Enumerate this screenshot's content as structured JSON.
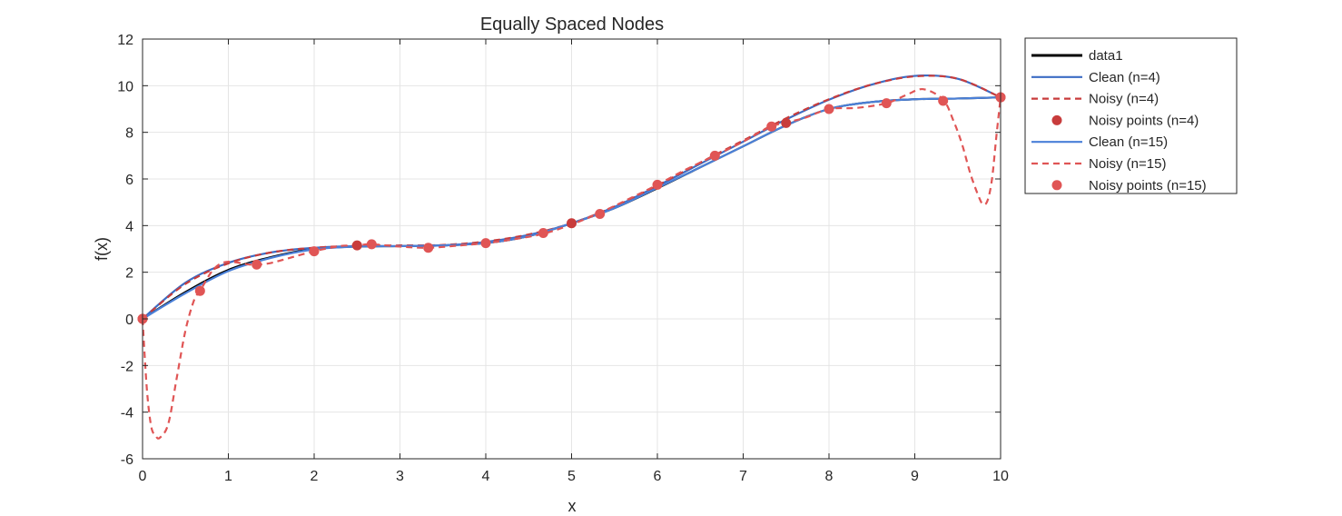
{
  "chart_data": {
    "type": "line",
    "title": "Equally Spaced Nodes",
    "xlabel": "x",
    "ylabel": "f(x)",
    "xlim": [
      0,
      10
    ],
    "ylim": [
      -6,
      12
    ],
    "xticks": [
      0,
      1,
      2,
      3,
      4,
      5,
      6,
      7,
      8,
      9,
      10
    ],
    "yticks": [
      -6,
      -4,
      -2,
      0,
      2,
      4,
      6,
      8,
      10,
      12
    ],
    "xtick_labels": [
      "0",
      "1",
      "2",
      "3",
      "4",
      "5",
      "6",
      "7",
      "8",
      "9",
      "10"
    ],
    "ytick_labels": [
      "-6",
      "-4",
      "-2",
      "0",
      "2",
      "4",
      "6",
      "8",
      "10",
      "12"
    ],
    "grid": true,
    "legend_position": "outside-top-right",
    "series": [
      {
        "name": "data1",
        "style": "line",
        "color": "#000000",
        "x": [
          0,
          0.5,
          1,
          1.5,
          2,
          2.5,
          3,
          3.5,
          4,
          4.5,
          5,
          5.5,
          6,
          6.5,
          7,
          7.5,
          8,
          8.5,
          9,
          9.5,
          10
        ],
        "y": [
          0,
          1.15,
          2.1,
          2.65,
          3.0,
          3.1,
          3.12,
          3.15,
          3.25,
          3.55,
          4.1,
          4.75,
          5.6,
          6.5,
          7.4,
          8.3,
          9.0,
          9.3,
          9.42,
          9.45,
          9.5
        ]
      },
      {
        "name": "Clean (n=4)",
        "style": "line",
        "color": "#3c6cc4",
        "x": [
          0,
          0.5,
          1,
          1.5,
          2,
          2.5,
          3,
          3.5,
          4,
          4.5,
          5,
          5.5,
          6,
          6.5,
          7,
          7.5,
          8,
          8.5,
          9,
          9.5,
          10
        ],
        "y": [
          0,
          1.55,
          2.4,
          2.85,
          3.05,
          3.12,
          3.12,
          3.15,
          3.3,
          3.6,
          4.1,
          4.8,
          5.7,
          6.65,
          7.6,
          8.55,
          9.4,
          10.05,
          10.42,
          10.3,
          9.5
        ]
      },
      {
        "name": "Noisy (n=4)",
        "style": "dashed",
        "color": "#c83c3c",
        "x": [
          0,
          0.5,
          1,
          1.5,
          2,
          2.5,
          3,
          3.5,
          4,
          4.5,
          5,
          5.5,
          6,
          6.5,
          7,
          7.5,
          8,
          8.5,
          9,
          9.5,
          10
        ],
        "y": [
          0,
          1.5,
          2.38,
          2.85,
          3.05,
          3.13,
          3.15,
          3.17,
          3.32,
          3.62,
          4.1,
          4.82,
          5.72,
          6.7,
          7.65,
          8.6,
          9.42,
          10.05,
          10.4,
          10.3,
          9.5
        ]
      },
      {
        "name": "Noisy points (n=4)",
        "style": "markers",
        "color": "#c83c3c",
        "x": [
          0,
          2.5,
          5,
          7.5,
          10
        ],
        "y": [
          0,
          3.15,
          4.1,
          8.4,
          9.5
        ]
      },
      {
        "name": "Clean (n=15)",
        "style": "line",
        "color": "#4a80d8",
        "x": [
          0,
          0.5,
          1,
          1.5,
          2,
          2.5,
          3,
          3.5,
          4,
          4.5,
          5,
          5.5,
          6,
          6.5,
          7,
          7.5,
          8,
          8.5,
          9,
          9.5,
          10
        ],
        "y": [
          0,
          1.1,
          2.05,
          2.62,
          2.98,
          3.1,
          3.12,
          3.15,
          3.25,
          3.55,
          4.1,
          4.75,
          5.62,
          6.5,
          7.4,
          8.3,
          9.0,
          9.3,
          9.42,
          9.45,
          9.5
        ]
      },
      {
        "name": "Noisy (n=15)",
        "style": "dashed",
        "color": "#e05555",
        "x": [
          0,
          0.05,
          0.1,
          0.15,
          0.2,
          0.3,
          0.4,
          0.5,
          0.6,
          0.67,
          0.8,
          0.9,
          1.0,
          1.1,
          1.2,
          1.33,
          1.5,
          1.7,
          2.0,
          2.3,
          2.5,
          2.67,
          3.0,
          3.33,
          3.7,
          4.0,
          4.3,
          4.67,
          5.0,
          5.33,
          5.7,
          6.0,
          6.33,
          6.67,
          7.0,
          7.33,
          7.7,
          8.0,
          8.33,
          8.67,
          8.9,
          9.1,
          9.33,
          9.45,
          9.55,
          9.65,
          9.75,
          9.8,
          9.85,
          9.9,
          9.95,
          10
        ],
        "y": [
          0,
          -3.0,
          -4.6,
          -5.0,
          -5.1,
          -4.5,
          -2.5,
          -0.5,
          0.8,
          1.2,
          2.0,
          2.35,
          2.45,
          2.42,
          2.35,
          2.32,
          2.4,
          2.6,
          2.9,
          3.12,
          3.15,
          3.2,
          3.1,
          3.05,
          3.15,
          3.25,
          3.4,
          3.65,
          4.05,
          4.55,
          5.2,
          5.75,
          6.4,
          7.0,
          7.6,
          8.25,
          8.6,
          9.0,
          9.05,
          9.25,
          9.6,
          9.85,
          9.4,
          8.5,
          7.5,
          6.2,
          5.2,
          4.9,
          5.1,
          6.0,
          7.8,
          9.5
        ]
      },
      {
        "name": "Noisy points (n=15)",
        "style": "markers",
        "color": "#e05555",
        "x": [
          0,
          0.67,
          1.33,
          2.0,
          2.67,
          3.33,
          4.0,
          4.67,
          5.33,
          6.0,
          6.67,
          7.33,
          8.0,
          8.67,
          9.33,
          10.0
        ],
        "y": [
          0,
          1.2,
          2.33,
          2.9,
          3.2,
          3.05,
          3.25,
          3.68,
          4.5,
          5.75,
          7.0,
          8.25,
          9.0,
          9.25,
          9.35,
          9.5
        ]
      }
    ]
  }
}
